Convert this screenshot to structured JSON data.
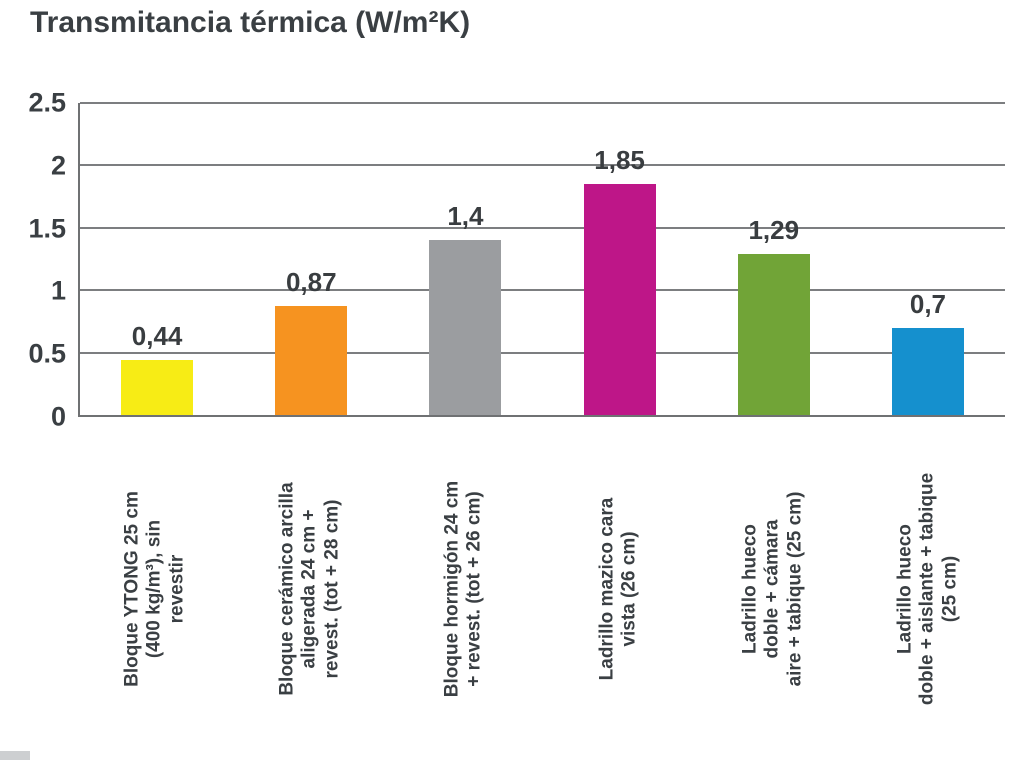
{
  "chart_data": {
    "type": "bar",
    "title": "Transmitancia térmica (W/m²K)",
    "xlabel": "",
    "ylabel": "",
    "ylim": [
      0,
      2.5
    ],
    "ytick_interval": 0.5,
    "yticks": [
      "0",
      "0.5",
      "1",
      "1.5",
      "2",
      "2.5"
    ],
    "grid": true,
    "legend": "none",
    "categories": [
      "Bloque YTONG 25 cm\n(400 kg/m³), sin\nrevestir",
      "Bloque cerámico arcilla\naligerada 24 cm +\nrevest. (tot + 28 cm)",
      "Bloque hormigón 24 cm\n+ revest. (tot + 26 cm)",
      "Ladrillo mazico cara\nvista (26 cm)",
      "Ladrillo hueco\ndoble + cámara\naire + tabique (25 cm)",
      "Ladrillo hueco\ndoble + aislante + tabique\n(25 cm)"
    ],
    "values": [
      0.44,
      0.87,
      1.4,
      1.85,
      1.29,
      0.7
    ],
    "value_labels": [
      "0,44",
      "0,87",
      "1,4",
      "1,85",
      "1,29",
      "0,7"
    ],
    "bar_colors": [
      "#f7ec15",
      "#f69320",
      "#9b9da0",
      "#be1688",
      "#71a437",
      "#1590ce"
    ]
  },
  "colors": {
    "text": "#3a3f43",
    "grid": "#7c7e80",
    "axis": "#6f7173",
    "background": "#ffffff"
  }
}
